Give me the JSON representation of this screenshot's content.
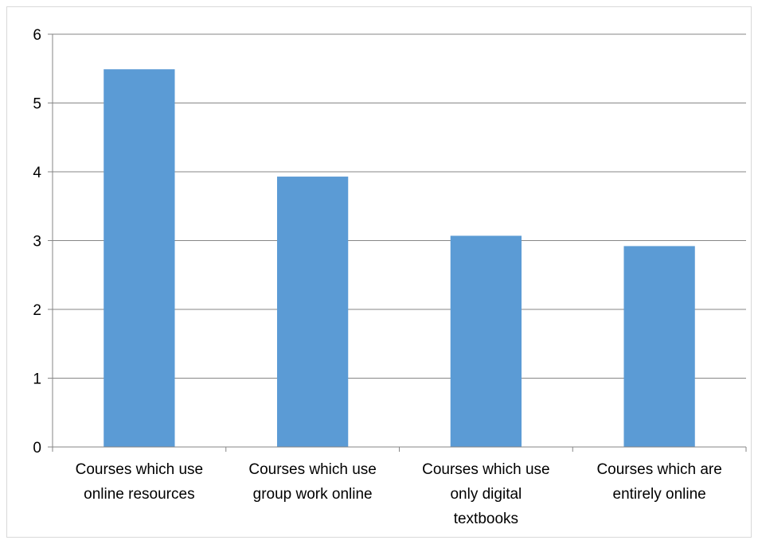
{
  "chart_data": {
    "type": "bar",
    "title": "",
    "xlabel": "",
    "ylabel": "",
    "categories": [
      [
        "Courses which use",
        "online resources"
      ],
      [
        "Courses which use",
        "group work online"
      ],
      [
        "Courses which use",
        "only digital",
        "textbooks"
      ],
      [
        "Courses which are",
        "entirely online"
      ]
    ],
    "values": [
      5.49,
      3.93,
      3.07,
      2.92
    ],
    "ylim": [
      0,
      6
    ],
    "yticks": [
      0,
      1,
      2,
      3,
      4,
      5,
      6
    ],
    "grid": true,
    "legend": "none",
    "bar_color": "#5b9bd5",
    "grid_color": "#868686",
    "axis_color": "#868686"
  }
}
